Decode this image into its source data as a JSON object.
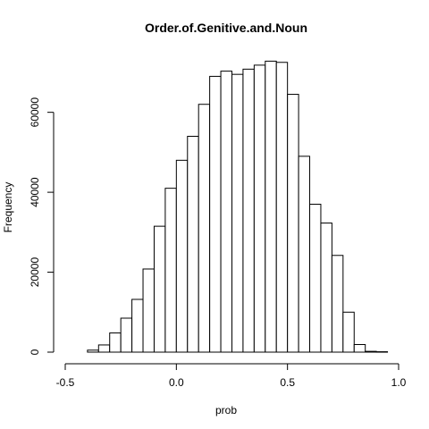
{
  "chart_data": {
    "type": "bar",
    "title": "Order.of.Genitive.and.Noun",
    "xlabel": "prob",
    "ylabel": "Frequency",
    "xlim": [
      -0.5,
      1.0
    ],
    "ylim": [
      0,
      72000
    ],
    "grid": false,
    "legend": "none",
    "x_ticks": [
      -0.5,
      0.0,
      0.5,
      1.0
    ],
    "x_tick_labels": [
      "-0.5",
      "0.0",
      "0.5",
      "1.0"
    ],
    "y_ticks": [
      0,
      20000,
      40000,
      60000
    ],
    "y_tick_labels": [
      "0",
      "20000",
      "40000",
      "60000"
    ],
    "bin_width": 0.05,
    "bins": [
      {
        "x0": -0.4,
        "x1": -0.35,
        "count": 500
      },
      {
        "x0": -0.35,
        "x1": -0.3,
        "count": 1800
      },
      {
        "x0": -0.3,
        "x1": -0.25,
        "count": 4800
      },
      {
        "x0": -0.25,
        "x1": -0.2,
        "count": 8500
      },
      {
        "x0": -0.2,
        "x1": -0.15,
        "count": 13200
      },
      {
        "x0": -0.15,
        "x1": -0.1,
        "count": 20800
      },
      {
        "x0": -0.1,
        "x1": -0.05,
        "count": 31500
      },
      {
        "x0": -0.05,
        "x1": 0.0,
        "count": 41000
      },
      {
        "x0": 0.0,
        "x1": 0.05,
        "count": 48000
      },
      {
        "x0": 0.05,
        "x1": 0.1,
        "count": 54000
      },
      {
        "x0": 0.1,
        "x1": 0.15,
        "count": 62000
      },
      {
        "x0": 0.15,
        "x1": 0.2,
        "count": 69000
      },
      {
        "x0": 0.2,
        "x1": 0.25,
        "count": 70300
      },
      {
        "x0": 0.25,
        "x1": 0.3,
        "count": 69500
      },
      {
        "x0": 0.3,
        "x1": 0.35,
        "count": 70800
      },
      {
        "x0": 0.35,
        "x1": 0.4,
        "count": 71800
      },
      {
        "x0": 0.4,
        "x1": 0.45,
        "count": 72800
      },
      {
        "x0": 0.45,
        "x1": 0.5,
        "count": 72500
      },
      {
        "x0": 0.5,
        "x1": 0.55,
        "count": 64500
      },
      {
        "x0": 0.55,
        "x1": 0.6,
        "count": 49000
      },
      {
        "x0": 0.6,
        "x1": 0.65,
        "count": 37000
      },
      {
        "x0": 0.65,
        "x1": 0.7,
        "count": 32300
      },
      {
        "x0": 0.7,
        "x1": 0.75,
        "count": 24200
      },
      {
        "x0": 0.75,
        "x1": 0.8,
        "count": 10000
      },
      {
        "x0": 0.8,
        "x1": 0.85,
        "count": 1900
      },
      {
        "x0": 0.85,
        "x1": 0.9,
        "count": 200
      },
      {
        "x0": 0.9,
        "x1": 0.95,
        "count": 100
      }
    ]
  }
}
